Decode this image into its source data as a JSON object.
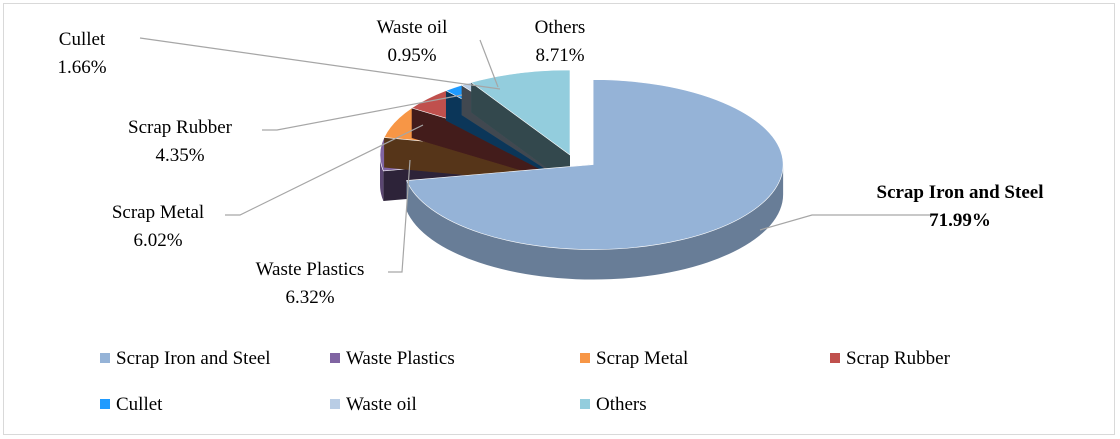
{
  "chart_data": {
    "type": "pie",
    "title": "",
    "categories": [
      "Scrap Iron and Steel",
      "Waste Plastics",
      "Scrap Metal",
      "Scrap Rubber",
      "Cullet",
      "Waste oil",
      "Others"
    ],
    "values": [
      71.99,
      6.32,
      6.02,
      4.35,
      1.66,
      0.95,
      8.71
    ],
    "value_labels": [
      "71.99%",
      "6.32%",
      "6.02%",
      "4.35%",
      "1.66%",
      "0.95%",
      "8.71%"
    ],
    "colors": [
      "#95B3D7",
      "#8064A2",
      "#F79646",
      "#C0504D",
      "#1F9BFF",
      "#B9CDE5",
      "#93CDDD"
    ],
    "exploded_slice": "Scrap Iron and Steel",
    "three_d": true,
    "legend_position": "bottom"
  }
}
